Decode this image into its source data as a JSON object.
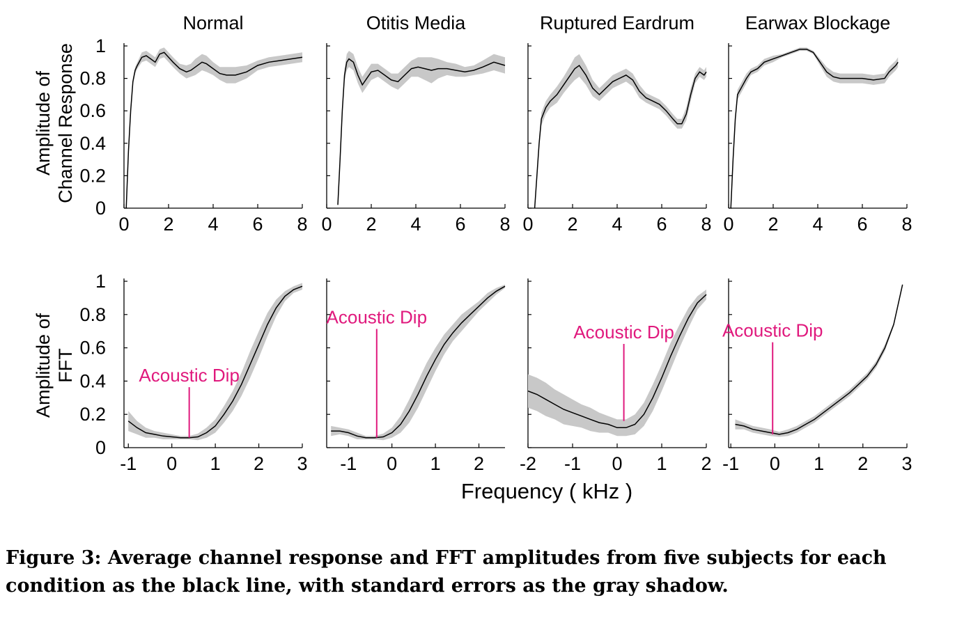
{
  "figure": {
    "xlabel": "Frequency ( kHz )",
    "row_labels": {
      "channel": [
        "Amplitude of",
        "Channel Response"
      ],
      "fft": [
        "Amplitude of",
        "FFT"
      ]
    },
    "annotation_color": "#e0197d",
    "band_color": "#c8c8c8",
    "line_color": "#000000"
  },
  "caption": "Figure 3: Average channel response and FFT amplitudes from five subjects for each condition as the black line, with standard errors as the gray shadow.",
  "chart_data": [
    {
      "type": "line",
      "row": "channel",
      "title": "Normal",
      "xlim": [
        0,
        8
      ],
      "ylim": [
        0,
        1
      ],
      "xticks": [
        "0",
        "2",
        "4",
        "6",
        "8"
      ],
      "yticks": [
        "0",
        "0.2",
        "0.4",
        "0.6",
        "0.8",
        "1"
      ],
      "series": [
        {
          "x": [
            0.1,
            0.2,
            0.3,
            0.4,
            0.5,
            0.6,
            0.8,
            1.0,
            1.2,
            1.4,
            1.6,
            1.8,
            2.0,
            2.2,
            2.5,
            2.8,
            3.0,
            3.2,
            3.5,
            3.7,
            4.0,
            4.3,
            4.6,
            5.0,
            5.5,
            6.0,
            6.5,
            7.0,
            7.5,
            8.0
          ],
          "y": [
            0.0,
            0.35,
            0.6,
            0.78,
            0.85,
            0.88,
            0.93,
            0.94,
            0.92,
            0.9,
            0.95,
            0.96,
            0.93,
            0.9,
            0.86,
            0.84,
            0.85,
            0.87,
            0.9,
            0.89,
            0.86,
            0.83,
            0.82,
            0.82,
            0.84,
            0.88,
            0.9,
            0.91,
            0.92,
            0.93
          ],
          "err": [
            0.0,
            0.02,
            0.02,
            0.02,
            0.02,
            0.02,
            0.03,
            0.03,
            0.03,
            0.03,
            0.03,
            0.03,
            0.03,
            0.03,
            0.03,
            0.04,
            0.04,
            0.05,
            0.05,
            0.05,
            0.04,
            0.04,
            0.05,
            0.05,
            0.04,
            0.03,
            0.03,
            0.03,
            0.03,
            0.03
          ]
        }
      ]
    },
    {
      "type": "line",
      "row": "channel",
      "title": "Otitis Media",
      "xlim": [
        0,
        8
      ],
      "ylim": [
        0,
        1
      ],
      "xticks": [
        "0",
        "2",
        "4",
        "6",
        "8"
      ],
      "yticks": [],
      "series": [
        {
          "x": [
            0.5,
            0.6,
            0.7,
            0.8,
            0.9,
            1.0,
            1.2,
            1.4,
            1.6,
            1.8,
            2.0,
            2.3,
            2.6,
            2.9,
            3.2,
            3.5,
            3.8,
            4.1,
            4.4,
            4.7,
            5.0,
            5.4,
            5.8,
            6.2,
            6.6,
            7.0,
            7.5,
            8.0
          ],
          "y": [
            0.02,
            0.3,
            0.6,
            0.82,
            0.9,
            0.92,
            0.9,
            0.82,
            0.76,
            0.8,
            0.84,
            0.85,
            0.82,
            0.79,
            0.78,
            0.82,
            0.86,
            0.87,
            0.86,
            0.85,
            0.86,
            0.86,
            0.85,
            0.84,
            0.85,
            0.87,
            0.9,
            0.88
          ],
          "err": [
            0.0,
            0.02,
            0.03,
            0.04,
            0.05,
            0.05,
            0.05,
            0.05,
            0.05,
            0.05,
            0.05,
            0.04,
            0.04,
            0.04,
            0.05,
            0.05,
            0.05,
            0.06,
            0.07,
            0.08,
            0.06,
            0.04,
            0.04,
            0.03,
            0.03,
            0.04,
            0.05,
            0.05
          ]
        }
      ]
    },
    {
      "type": "line",
      "row": "channel",
      "title": "Ruptured Eardrum",
      "xlim": [
        0,
        8
      ],
      "ylim": [
        0,
        1
      ],
      "xticks": [
        "0",
        "2",
        "4",
        "6",
        "8"
      ],
      "yticks": [],
      "series": [
        {
          "x": [
            0.3,
            0.4,
            0.5,
            0.6,
            0.8,
            1.0,
            1.3,
            1.6,
            1.9,
            2.1,
            2.3,
            2.6,
            2.9,
            3.2,
            3.5,
            3.8,
            4.1,
            4.4,
            4.7,
            5.0,
            5.3,
            5.6,
            5.9,
            6.2,
            6.5,
            6.7,
            6.9,
            7.1,
            7.3,
            7.5,
            7.7,
            7.9,
            8.0
          ],
          "y": [
            0.0,
            0.2,
            0.4,
            0.55,
            0.62,
            0.66,
            0.7,
            0.76,
            0.82,
            0.86,
            0.88,
            0.82,
            0.74,
            0.7,
            0.74,
            0.78,
            0.8,
            0.82,
            0.79,
            0.72,
            0.68,
            0.66,
            0.64,
            0.6,
            0.55,
            0.52,
            0.52,
            0.58,
            0.7,
            0.8,
            0.84,
            0.82,
            0.84
          ],
          "err": [
            0.0,
            0.02,
            0.03,
            0.04,
            0.04,
            0.04,
            0.05,
            0.05,
            0.06,
            0.07,
            0.07,
            0.06,
            0.05,
            0.04,
            0.04,
            0.04,
            0.04,
            0.04,
            0.04,
            0.04,
            0.03,
            0.03,
            0.03,
            0.03,
            0.03,
            0.03,
            0.03,
            0.04,
            0.04,
            0.03,
            0.03,
            0.03,
            0.03
          ]
        }
      ]
    },
    {
      "type": "line",
      "row": "channel",
      "title": "Earwax Blockage",
      "xlim": [
        0,
        8
      ],
      "ylim": [
        0,
        1
      ],
      "xticks": [
        "0",
        "2",
        "4",
        "6",
        "8"
      ],
      "yticks": [],
      "series": [
        {
          "x": [
            0.1,
            0.2,
            0.3,
            0.4,
            0.6,
            0.8,
            1.0,
            1.3,
            1.6,
            2.0,
            2.4,
            2.8,
            3.2,
            3.5,
            3.8,
            4.1,
            4.4,
            4.7,
            5.0,
            5.5,
            6.0,
            6.5,
            7.0,
            7.2,
            7.5,
            7.6
          ],
          "y": [
            0.0,
            0.3,
            0.55,
            0.7,
            0.75,
            0.8,
            0.84,
            0.86,
            0.9,
            0.92,
            0.94,
            0.96,
            0.98,
            0.98,
            0.96,
            0.9,
            0.84,
            0.81,
            0.8,
            0.8,
            0.8,
            0.79,
            0.8,
            0.84,
            0.88,
            0.9
          ],
          "err": [
            0.0,
            0.02,
            0.03,
            0.03,
            0.03,
            0.03,
            0.02,
            0.02,
            0.02,
            0.02,
            0.01,
            0.01,
            0.01,
            0.01,
            0.01,
            0.02,
            0.03,
            0.03,
            0.03,
            0.03,
            0.03,
            0.03,
            0.03,
            0.03,
            0.03,
            0.03
          ]
        }
      ]
    },
    {
      "type": "line",
      "row": "fft",
      "title": "",
      "xlim": [
        -1.1,
        3
      ],
      "ylim": [
        0,
        1
      ],
      "xticks": [
        "-1",
        "0",
        "1",
        "2",
        "3"
      ],
      "yticks": [
        "0",
        "0.2",
        "0.4",
        "0.6",
        "0.8",
        "1"
      ],
      "series": [
        {
          "x": [
            -1.0,
            -0.8,
            -0.6,
            -0.4,
            -0.2,
            0.0,
            0.2,
            0.4,
            0.6,
            0.8,
            1.0,
            1.2,
            1.4,
            1.6,
            1.8,
            2.0,
            2.2,
            2.4,
            2.6,
            2.8,
            3.0
          ],
          "y": [
            0.16,
            0.12,
            0.09,
            0.08,
            0.07,
            0.065,
            0.06,
            0.06,
            0.065,
            0.09,
            0.13,
            0.2,
            0.28,
            0.38,
            0.5,
            0.62,
            0.74,
            0.84,
            0.91,
            0.95,
            0.97
          ],
          "err": [
            0.06,
            0.04,
            0.03,
            0.02,
            0.02,
            0.015,
            0.01,
            0.01,
            0.02,
            0.03,
            0.04,
            0.05,
            0.06,
            0.07,
            0.08,
            0.08,
            0.07,
            0.05,
            0.03,
            0.02,
            0.02
          ]
        }
      ],
      "annotation": {
        "text": "Acoustic Dip",
        "x": 0.4,
        "y": 0.06,
        "label_y": 0.33
      }
    },
    {
      "type": "line",
      "row": "fft",
      "title": "",
      "xlim": [
        -1.5,
        2.6
      ],
      "ylim": [
        0,
        1
      ],
      "xticks": [
        "-1",
        "0",
        "1",
        "2"
      ],
      "yticks": [],
      "series": [
        {
          "x": [
            -1.4,
            -1.2,
            -1.0,
            -0.8,
            -0.6,
            -0.4,
            -0.2,
            0.0,
            0.2,
            0.4,
            0.6,
            0.8,
            1.0,
            1.2,
            1.4,
            1.6,
            1.8,
            2.0,
            2.2,
            2.4,
            2.6
          ],
          "y": [
            0.1,
            0.1,
            0.09,
            0.07,
            0.06,
            0.06,
            0.065,
            0.09,
            0.14,
            0.22,
            0.32,
            0.43,
            0.53,
            0.62,
            0.69,
            0.75,
            0.8,
            0.85,
            0.9,
            0.94,
            0.97
          ],
          "err": [
            0.03,
            0.02,
            0.02,
            0.02,
            0.01,
            0.01,
            0.02,
            0.03,
            0.05,
            0.07,
            0.08,
            0.08,
            0.07,
            0.06,
            0.05,
            0.05,
            0.04,
            0.03,
            0.03,
            0.02,
            0.01
          ]
        }
      ],
      "annotation": {
        "text": "Acoustic Dip",
        "x": -0.35,
        "y": 0.06,
        "label_y": 0.68
      }
    },
    {
      "type": "line",
      "row": "fft",
      "title": "",
      "xlim": [
        -2,
        2
      ],
      "ylim": [
        0,
        1
      ],
      "xticks": [
        "-2",
        "-1",
        "0",
        "1",
        "2"
      ],
      "yticks": [],
      "series": [
        {
          "x": [
            -2.0,
            -1.8,
            -1.6,
            -1.4,
            -1.2,
            -1.0,
            -0.8,
            -0.6,
            -0.4,
            -0.2,
            0.0,
            0.2,
            0.4,
            0.6,
            0.8,
            1.0,
            1.2,
            1.4,
            1.6,
            1.8,
            2.0
          ],
          "y": [
            0.34,
            0.32,
            0.29,
            0.26,
            0.23,
            0.21,
            0.19,
            0.17,
            0.15,
            0.14,
            0.12,
            0.12,
            0.14,
            0.2,
            0.3,
            0.42,
            0.55,
            0.67,
            0.78,
            0.87,
            0.92
          ],
          "err": [
            0.1,
            0.1,
            0.1,
            0.09,
            0.09,
            0.08,
            0.07,
            0.07,
            0.06,
            0.05,
            0.05,
            0.05,
            0.06,
            0.07,
            0.08,
            0.08,
            0.08,
            0.07,
            0.06,
            0.04,
            0.03
          ]
        }
      ],
      "annotation": {
        "text": "Acoustic Dip",
        "x": 0.15,
        "y": 0.16,
        "label_y": 0.59
      }
    },
    {
      "type": "line",
      "row": "fft",
      "title": "",
      "xlim": [
        -1.05,
        3
      ],
      "ylim": [
        0,
        1
      ],
      "xticks": [
        "-1",
        "0",
        "1",
        "2",
        "3"
      ],
      "yticks": [],
      "series": [
        {
          "x": [
            -0.9,
            -0.7,
            -0.5,
            -0.3,
            -0.1,
            0.1,
            0.3,
            0.5,
            0.7,
            0.9,
            1.1,
            1.3,
            1.5,
            1.7,
            1.9,
            2.1,
            2.3,
            2.5,
            2.7,
            2.9
          ],
          "y": [
            0.14,
            0.13,
            0.11,
            0.1,
            0.09,
            0.08,
            0.09,
            0.11,
            0.14,
            0.17,
            0.21,
            0.25,
            0.29,
            0.33,
            0.38,
            0.43,
            0.5,
            0.6,
            0.74,
            0.98
          ],
          "err": [
            0.03,
            0.02,
            0.02,
            0.02,
            0.02,
            0.015,
            0.02,
            0.02,
            0.02,
            0.02,
            0.02,
            0.02,
            0.02,
            0.02,
            0.02,
            0.02,
            0.02,
            0.02,
            0.01,
            0.005
          ]
        }
      ],
      "annotation": {
        "text": "Acoustic Dip",
        "x": -0.05,
        "y": 0.08,
        "label_y": 0.6
      }
    }
  ]
}
